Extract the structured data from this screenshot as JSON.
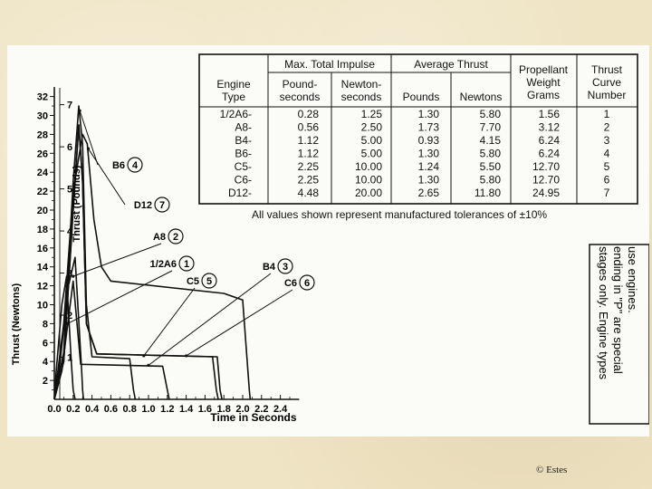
{
  "table": {
    "group_headers": {
      "impulse": "Max. Total Impulse",
      "thrust": "Average Thrust"
    },
    "headers": {
      "engine_type": [
        "Engine",
        "Type"
      ],
      "pound_seconds": [
        "Pound-",
        "seconds"
      ],
      "newton_seconds": [
        "Newton-",
        "seconds"
      ],
      "pounds": [
        "Pounds"
      ],
      "newtons": [
        "Newtons"
      ],
      "propellant": [
        "Propellant",
        "Weight",
        "Grams"
      ],
      "curve": [
        "Thrust",
        "Curve",
        "Number"
      ]
    },
    "rows": [
      [
        "1/2A6-",
        "0.28",
        "1.25",
        "1.30",
        "5.80",
        "1.56",
        "1"
      ],
      [
        "A8-",
        "0.56",
        "2.50",
        "1.73",
        "7.70",
        "3.12",
        "2"
      ],
      [
        "B4-",
        "1.12",
        "5.00",
        "0.93",
        "4.15",
        "6.24",
        "3"
      ],
      [
        "B6-",
        "1.12",
        "5.00",
        "1.30",
        "5.80",
        "6.24",
        "4"
      ],
      [
        "C5-",
        "2.25",
        "10.00",
        "1.24",
        "5.50",
        "12.70",
        "5"
      ],
      [
        "C6-",
        "2.25",
        "10.00",
        "1.30",
        "5.80",
        "12.70",
        "6"
      ],
      [
        "D12-",
        "4.48",
        "20.00",
        "2.65",
        "11.80",
        "24.95",
        "7"
      ]
    ],
    "footnote": "All values shown represent manufactured tolerances of ±10%"
  },
  "side_note": [
    "stages only. Engine types",
    "ending in \"P\" are special",
    "use engines."
  ],
  "copyright": "© Estes",
  "chart_data": {
    "type": "line",
    "xlabel": "Time in Seconds",
    "ylabel": "Thrust (Newtons)",
    "ylabel2": "Thrust (Pounds)",
    "xlim": [
      0,
      2.6
    ],
    "ylim": [
      0,
      33
    ],
    "x_ticks": [
      "0.0",
      "0.2",
      "0.4",
      "0.6",
      "0.8",
      "1.0",
      "1.2",
      "1.4",
      "1.6",
      "1.8",
      "2.0",
      "2.2",
      "2.4"
    ],
    "y_ticks": [
      "2",
      "4",
      "6",
      "8",
      "10",
      "12",
      "14",
      "16",
      "18",
      "20",
      "22",
      "24",
      "26",
      "28",
      "30",
      "32"
    ],
    "y2_ticks": [
      "1",
      "2",
      "3",
      "4",
      "5",
      "6",
      "7"
    ],
    "series": [
      {
        "name": "1/2A6",
        "number": "1",
        "x": [
          0.0,
          0.02,
          0.08,
          0.13,
          0.18,
          0.2,
          0.22
        ],
        "y": [
          0,
          3,
          10,
          13,
          4,
          1,
          0
        ]
      },
      {
        "name": "A8",
        "number": "2",
        "x": [
          0.0,
          0.05,
          0.15,
          0.22,
          0.29,
          0.3,
          0.31
        ],
        "y": [
          0,
          3,
          12,
          15,
          3,
          1,
          0
        ]
      },
      {
        "name": "B4",
        "number": "3",
        "x": [
          0.0,
          0.08,
          0.2,
          0.28,
          1.15,
          1.2,
          1.22
        ],
        "y": [
          0,
          3,
          12.5,
          3.7,
          3.5,
          1,
          0
        ]
      },
      {
        "name": "B6",
        "number": "4",
        "x": [
          0.0,
          0.1,
          0.2,
          0.26,
          0.3,
          0.34,
          0.4,
          0.8,
          0.84,
          0.86
        ],
        "y": [
          0,
          5,
          23,
          31,
          27,
          10,
          4.5,
          4.3,
          1,
          0
        ]
      },
      {
        "name": "C5",
        "number": "5",
        "x": [
          0.0,
          0.1,
          0.2,
          0.26,
          0.3,
          0.34,
          0.45,
          1.68,
          1.72,
          1.74
        ],
        "y": [
          0,
          4,
          20,
          29,
          23,
          8,
          4.8,
          4.5,
          1,
          0
        ]
      },
      {
        "name": "C6",
        "number": "6",
        "x": [
          0.0,
          0.1,
          0.2,
          0.26,
          0.3,
          0.34,
          0.45,
          1.73,
          1.76,
          1.78
        ],
        "y": [
          0,
          4,
          20,
          29,
          23,
          8,
          4.8,
          4.5,
          1,
          0
        ]
      },
      {
        "name": "D12",
        "number": "7",
        "x": [
          0.0,
          0.1,
          0.2,
          0.3,
          0.35,
          0.42,
          0.5,
          0.6,
          1.8,
          2.0,
          2.07,
          2.08
        ],
        "y": [
          0,
          8,
          22,
          28,
          27,
          19,
          14,
          12.5,
          11.2,
          10.5,
          1,
          0
        ]
      }
    ]
  }
}
